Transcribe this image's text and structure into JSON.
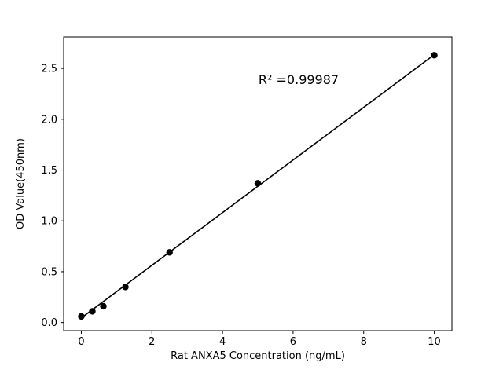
{
  "chart_data": {
    "type": "scatter",
    "title": "",
    "xlabel": "Rat ANXA5 Concentration (ng/mL)",
    "ylabel": "OD Value(450nm)",
    "annotation": {
      "text": "R² =0.99987"
    },
    "points": {
      "x": [
        0,
        0.3125,
        0.625,
        1.25,
        2.5,
        5,
        10
      ],
      "y": [
        0.06,
        0.11,
        0.16,
        0.35,
        0.69,
        1.37,
        2.63
      ]
    },
    "fit_line": {
      "x": [
        0,
        10
      ],
      "y": [
        0.045,
        2.635
      ]
    },
    "xlim": [
      -0.5,
      10.5
    ],
    "ylim": [
      -0.08,
      2.81
    ],
    "xticks": [
      0,
      2,
      4,
      6,
      8,
      10
    ],
    "xtick_labels": [
      "0",
      "2",
      "4",
      "6",
      "8",
      "10"
    ],
    "yticks": [
      0.0,
      0.5,
      1.0,
      1.5,
      2.0,
      2.5
    ],
    "ytick_labels": [
      "0.0",
      "0.5",
      "1.0",
      "1.5",
      "2.0",
      "2.5"
    ],
    "marker_color": "#000000",
    "line_color": "#000000",
    "background_color": "#ffffff",
    "grid": false,
    "legend": null
  }
}
